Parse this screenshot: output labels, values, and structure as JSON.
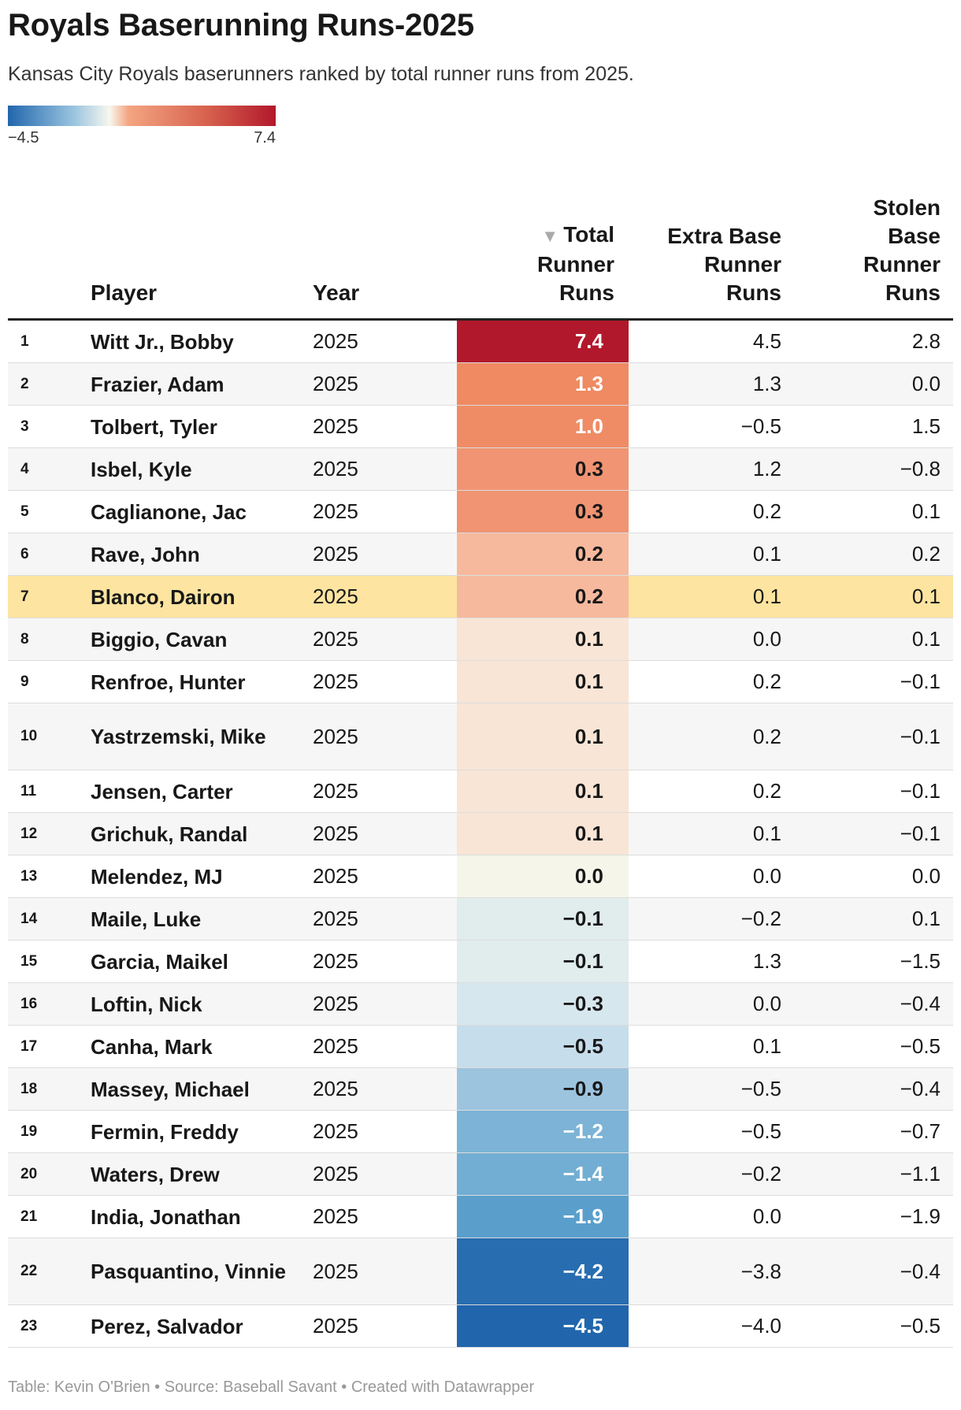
{
  "title": "Royals Baserunning Runs-2025",
  "subtitle": "Kansas City Royals baserunners ranked by total runner runs from 2025.",
  "legend": {
    "min_label": "−4.5",
    "max_label": "7.4",
    "min_value": -4.5,
    "max_value": 7.4
  },
  "headers": {
    "player": "Player",
    "year": "Year",
    "total": "Total Runner Runs",
    "extra": "Extra Base Runner Runs",
    "stolen": "Stolen Base Runner Runs",
    "sort_indicator": "▼"
  },
  "colors": {
    "scale_low": "#2166ac",
    "scale_mid": "#f7f7ee",
    "scale_high": "#b2182b",
    "highlight": "#fde4a0"
  },
  "chart_data": {
    "type": "table",
    "title": "Royals Baserunning Runs-2025",
    "columns": [
      "Player",
      "Year",
      "Total Runner Runs",
      "Extra Base Runner Runs",
      "Stolen Base Runner Runs"
    ],
    "highlighted_rank": 7,
    "rows": [
      {
        "rank": "1",
        "player": "Witt Jr., Bobby",
        "year": "2025",
        "total": "7.4",
        "extra": "4.5",
        "stolen": "2.8",
        "color": "#b2182b",
        "light_text": true
      },
      {
        "rank": "2",
        "player": "Frazier, Adam",
        "year": "2025",
        "total": "1.3",
        "extra": "1.3",
        "stolen": "0.0",
        "color": "#ef8a62",
        "light_text": true
      },
      {
        "rank": "3",
        "player": "Tolbert, Tyler",
        "year": "2025",
        "total": "1.0",
        "extra": "−0.5",
        "stolen": "1.5",
        "color": "#ef8c65",
        "light_text": true
      },
      {
        "rank": "4",
        "player": "Isbel, Kyle",
        "year": "2025",
        "total": "0.3",
        "extra": "1.2",
        "stolen": "−0.8",
        "color": "#f09473",
        "light_text": false
      },
      {
        "rank": "5",
        "player": "Caglianone, Jac",
        "year": "2025",
        "total": "0.3",
        "extra": "0.2",
        "stolen": "0.1",
        "color": "#f09473",
        "light_text": false
      },
      {
        "rank": "6",
        "player": "Rave, John",
        "year": "2025",
        "total": "0.2",
        "extra": "0.1",
        "stolen": "0.2",
        "color": "#f7b99d",
        "light_text": false
      },
      {
        "rank": "7",
        "player": "Blanco, Dairon",
        "year": "2025",
        "total": "0.2",
        "extra": "0.1",
        "stolen": "0.1",
        "color": "#f7b99d",
        "light_text": false
      },
      {
        "rank": "8",
        "player": "Biggio, Cavan",
        "year": "2025",
        "total": "0.1",
        "extra": "0.0",
        "stolen": "0.1",
        "color": "#f8e5d6",
        "light_text": false
      },
      {
        "rank": "9",
        "player": "Renfroe, Hunter",
        "year": "2025",
        "total": "0.1",
        "extra": "0.2",
        "stolen": "−0.1",
        "color": "#f8e5d6",
        "light_text": false
      },
      {
        "rank": "10",
        "player": "Yastrzemski, Mike",
        "year": "2025",
        "total": "0.1",
        "extra": "0.2",
        "stolen": "−0.1",
        "color": "#f8e5d6",
        "light_text": false,
        "tall": true
      },
      {
        "rank": "11",
        "player": "Jensen, Carter",
        "year": "2025",
        "total": "0.1",
        "extra": "0.2",
        "stolen": "−0.1",
        "color": "#f8e5d6",
        "light_text": false
      },
      {
        "rank": "12",
        "player": "Grichuk, Randal",
        "year": "2025",
        "total": "0.1",
        "extra": "0.1",
        "stolen": "−0.1",
        "color": "#f8e5d6",
        "light_text": false
      },
      {
        "rank": "13",
        "player": "Melendez, MJ",
        "year": "2025",
        "total": "0.0",
        "extra": "0.0",
        "stolen": "0.0",
        "color": "#f6f5e9",
        "light_text": false
      },
      {
        "rank": "14",
        "player": "Maile, Luke",
        "year": "2025",
        "total": "−0.1",
        "extra": "−0.2",
        "stolen": "0.1",
        "color": "#e1ecec",
        "light_text": false
      },
      {
        "rank": "15",
        "player": "Garcia, Maikel",
        "year": "2025",
        "total": "−0.1",
        "extra": "1.3",
        "stolen": "−1.5",
        "color": "#e1ecec",
        "light_text": false
      },
      {
        "rank": "16",
        "player": "Loftin, Nick",
        "year": "2025",
        "total": "−0.3",
        "extra": "0.0",
        "stolen": "−0.4",
        "color": "#d7e7ee",
        "light_text": false
      },
      {
        "rank": "17",
        "player": "Canha, Mark",
        "year": "2025",
        "total": "−0.5",
        "extra": "0.1",
        "stolen": "−0.5",
        "color": "#c6ddeb",
        "light_text": false
      },
      {
        "rank": "18",
        "player": "Massey, Michael",
        "year": "2025",
        "total": "−0.9",
        "extra": "−0.5",
        "stolen": "−0.4",
        "color": "#9dc4df",
        "light_text": false
      },
      {
        "rank": "19",
        "player": "Fermin, Freddy",
        "year": "2025",
        "total": "−1.2",
        "extra": "−0.5",
        "stolen": "−0.7",
        "color": "#7cb3d6",
        "light_text": true
      },
      {
        "rank": "20",
        "player": "Waters, Drew",
        "year": "2025",
        "total": "−1.4",
        "extra": "−0.2",
        "stolen": "−1.1",
        "color": "#72aed3",
        "light_text": true
      },
      {
        "rank": "21",
        "player": "India, Jonathan",
        "year": "2025",
        "total": "−1.9",
        "extra": "0.0",
        "stolen": "−1.9",
        "color": "#5a9fcc",
        "light_text": true
      },
      {
        "rank": "22",
        "player": "Pasquantino, Vinnie",
        "year": "2025",
        "total": "−4.2",
        "extra": "−3.8",
        "stolen": "−0.4",
        "color": "#286db0",
        "light_text": true,
        "tall": true
      },
      {
        "rank": "23",
        "player": "Perez, Salvador",
        "year": "2025",
        "total": "−4.5",
        "extra": "−4.0",
        "stolen": "−0.5",
        "color": "#2166ac",
        "light_text": true
      }
    ]
  },
  "footer": "Table: Kevin O'Brien • Source: Baseball Savant • Created with Datawrapper"
}
